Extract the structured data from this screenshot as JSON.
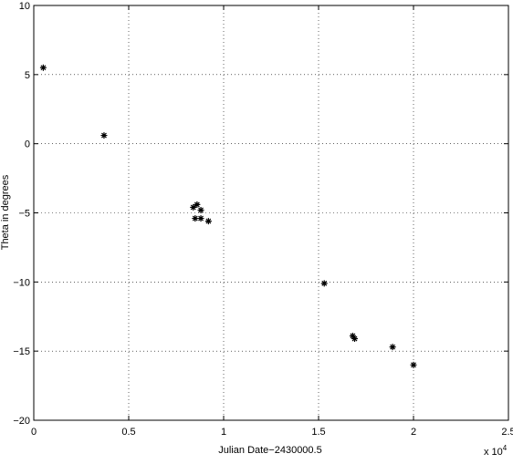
{
  "chart_data": {
    "type": "scatter",
    "x_label": "Julian Date−2430000.5",
    "y_label": "Theta in degrees",
    "x_multiplier": {
      "base": "x 10",
      "exponent": "4"
    },
    "x": [
      0.05,
      0.37,
      0.84,
      0.86,
      0.88,
      0.85,
      0.88,
      0.92,
      1.53,
      1.68,
      1.69,
      1.89,
      2.0
    ],
    "y": [
      5.5,
      0.6,
      -4.6,
      -4.4,
      -4.8,
      -5.4,
      -5.4,
      -5.6,
      -10.1,
      -13.9,
      -14.1,
      -14.7,
      -16.0
    ],
    "color": "#000000",
    "marker": "*",
    "xlim": [
      0,
      2.5
    ],
    "xticks": [
      0,
      0.5,
      1,
      1.5,
      2,
      2.5
    ],
    "ylim": [
      -20,
      10
    ],
    "yticks": [
      -20,
      -15,
      -10,
      -5,
      0,
      5,
      10
    ],
    "grid": true
  }
}
